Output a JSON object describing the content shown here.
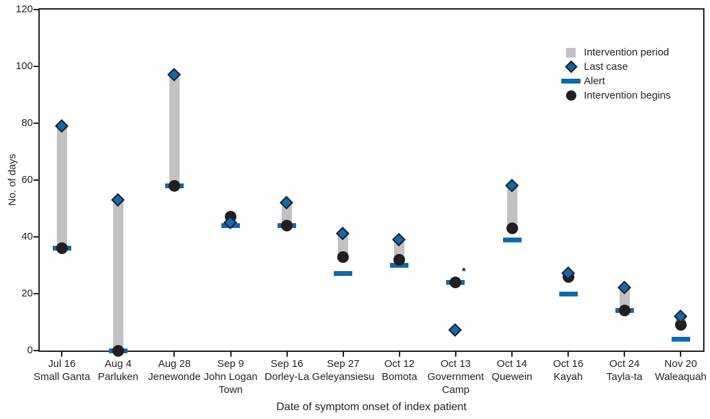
{
  "chart_data": {
    "type": "scatter",
    "title": "",
    "xlabel": "Date of symptom onset of index patient",
    "ylabel": "No. of days",
    "ylim": [
      0,
      120
    ],
    "y_ticks": [
      0,
      20,
      40,
      60,
      80,
      100,
      120
    ],
    "grid": false,
    "legend_position": "top-right-inside",
    "legend": [
      {
        "key": "intervention_period",
        "label": "Intervention period"
      },
      {
        "key": "last_case",
        "label": "Last case"
      },
      {
        "key": "alert",
        "label": "Alert"
      },
      {
        "key": "intervention_begins",
        "label": "Intervention begins"
      }
    ],
    "points": [
      {
        "label_lines": [
          "Jul 16",
          "Small Ganta"
        ],
        "alert": 36,
        "intervention_begins": 36,
        "last_case": 79
      },
      {
        "label_lines": [
          "Aug 4",
          "Parluken"
        ],
        "alert": 0,
        "intervention_begins": 0,
        "last_case": 53
      },
      {
        "label_lines": [
          "Aug 28",
          "Jenewonde"
        ],
        "alert": 58,
        "intervention_begins": 58,
        "last_case": 97
      },
      {
        "label_lines": [
          "Sep 9",
          "John Logan",
          "Town"
        ],
        "alert": 44,
        "intervention_begins": 47,
        "last_case": 45
      },
      {
        "label_lines": [
          "Sep 16",
          "Dorley-La"
        ],
        "alert": 44,
        "intervention_begins": 44,
        "last_case": 52
      },
      {
        "label_lines": [
          "Sep 27",
          "Geleyansiesu"
        ],
        "alert": 27,
        "intervention_begins": 33,
        "last_case": 41
      },
      {
        "label_lines": [
          "Oct 12",
          "Bomota"
        ],
        "alert": 30,
        "intervention_begins": 32,
        "last_case": 39
      },
      {
        "label_lines": [
          "Oct 13",
          "Government",
          "Camp"
        ],
        "alert": 24,
        "intervention_begins": 24,
        "last_case": 7,
        "footnote_marker": "*"
      },
      {
        "label_lines": [
          "Oct 14",
          "Quewein"
        ],
        "alert": 39,
        "intervention_begins": 43,
        "last_case": 58
      },
      {
        "label_lines": [
          "Oct 16",
          "Kayah"
        ],
        "alert": 20,
        "intervention_begins": 26,
        "last_case": 27
      },
      {
        "label_lines": [
          "Oct 24",
          "Tayla-ta"
        ],
        "alert": 14,
        "intervention_begins": 14,
        "last_case": 22
      },
      {
        "label_lines": [
          "Nov 20",
          "Waleaquah"
        ],
        "alert": 4,
        "intervention_begins": 9,
        "last_case": 12
      }
    ],
    "colors": {
      "blue": "#1068ad",
      "gray": "#c2c2c4",
      "black": "#231f20"
    }
  }
}
